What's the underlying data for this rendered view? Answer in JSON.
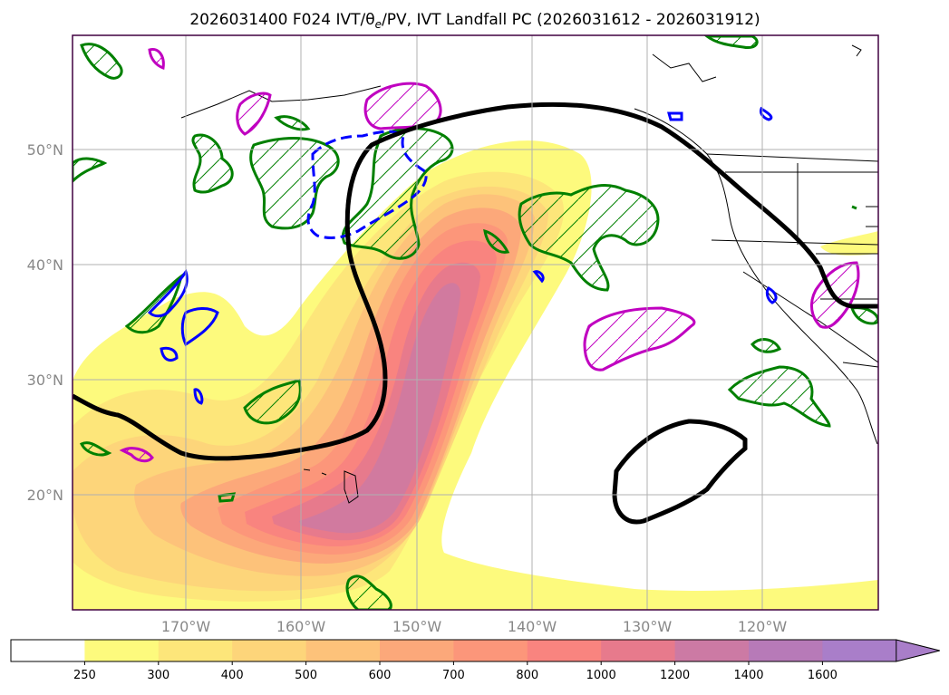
{
  "title": "2026031400 F024 IVT/θ",
  "title_sub": "e",
  "title_rest": "/PV, IVT Landfall PC (2026031612 - 2026031912)",
  "lat_labels": [
    "50°N",
    "40°N",
    "30°N",
    "20°N"
  ],
  "lon_labels": [
    "170°W",
    "160°W",
    "150°W",
    "140°W",
    "130°W",
    "120°W"
  ],
  "colorbar": {
    "ticks": [
      "250",
      "300",
      "400",
      "500",
      "600",
      "700",
      "800",
      "1000",
      "1200",
      "1400",
      "1600"
    ],
    "colors": [
      "#ffffff",
      "#fdfa7d",
      "#fde67a",
      "#fdd57a",
      "#fdc27a",
      "#fca87a",
      "#fc967a",
      "#f9847f",
      "#e77a8c",
      "#cc7aa4",
      "#b77ab8",
      "#a97ec9"
    ],
    "extend": "max"
  },
  "map_extent": {
    "lon": [
      -180,
      -110
    ],
    "lat": [
      10,
      60
    ]
  },
  "legend_colors": {
    "ivt_contour": "#000000",
    "pv_positive": "#008000",
    "theta_e": "#0000ff",
    "pv_magenta": "#c000c0"
  }
}
